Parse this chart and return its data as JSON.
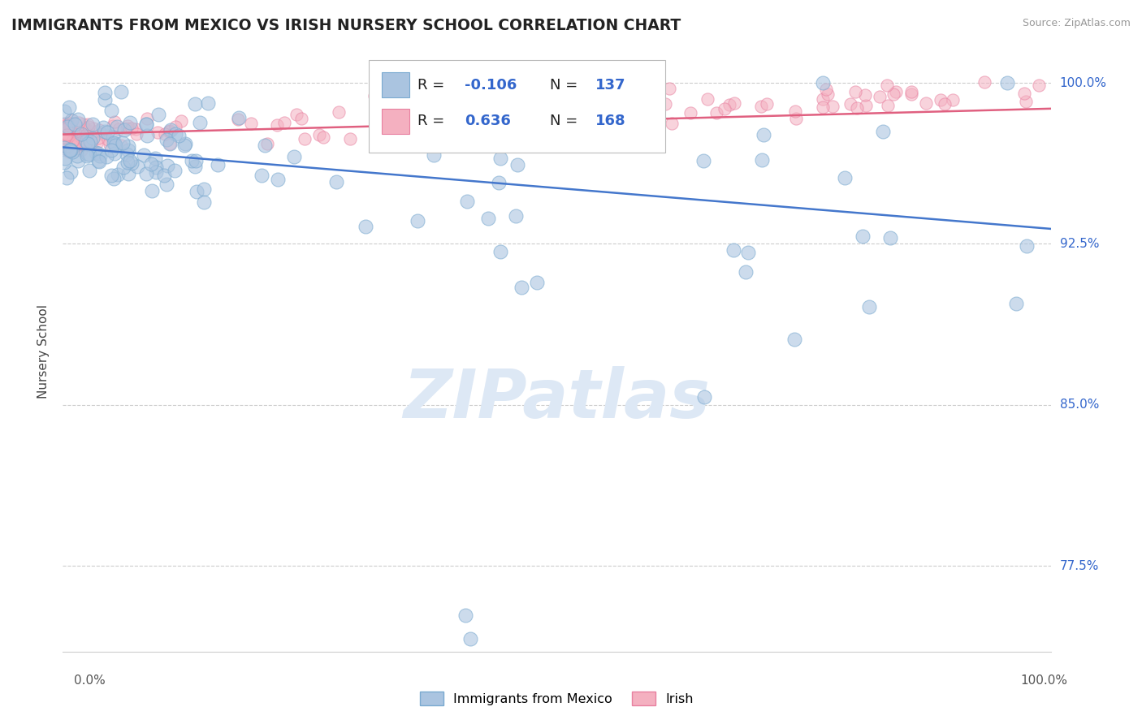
{
  "title": "IMMIGRANTS FROM MEXICO VS IRISH NURSERY SCHOOL CORRELATION CHART",
  "source": "Source: ZipAtlas.com",
  "ylabel": "Nursery School",
  "ytick_labels": [
    "77.5%",
    "85.0%",
    "92.5%",
    "100.0%"
  ],
  "ytick_values": [
    0.775,
    0.85,
    0.925,
    1.0
  ],
  "xlim": [
    0.0,
    1.0
  ],
  "ylim": [
    0.735,
    1.015
  ],
  "mexico_color": "#aac4e0",
  "mexico_edge": "#7aaad0",
  "irish_color": "#f4b0c0",
  "irish_edge": "#e880a0",
  "mexico_line_color": "#4477cc",
  "irish_line_color": "#e06080",
  "background_color": "#ffffff",
  "watermark_color": "#dde8f5",
  "R_value_color": "#3366cc",
  "legend_entries": [
    {
      "label": "Immigrants from Mexico",
      "color": "#aac4e0",
      "edge": "#7aaad0"
    },
    {
      "label": "Irish",
      "color": "#f4b0c0",
      "edge": "#e880a0"
    }
  ]
}
